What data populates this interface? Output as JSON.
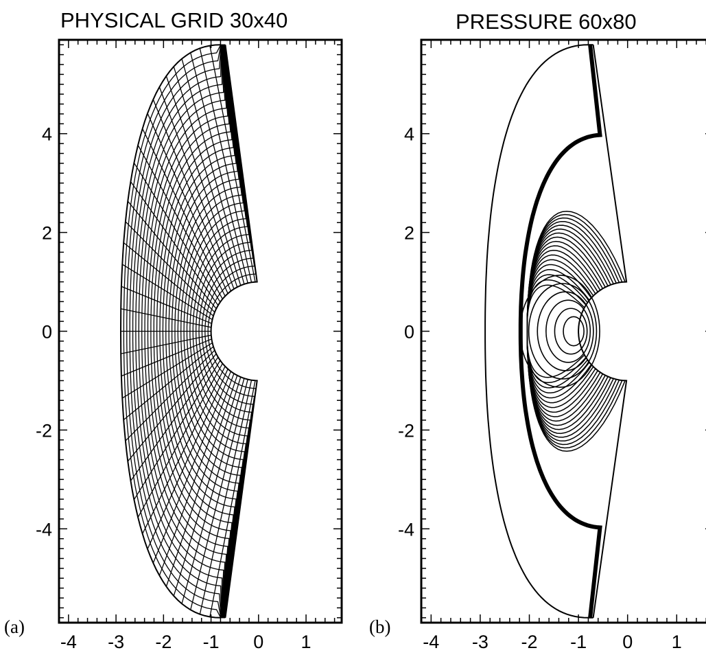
{
  "panels": [
    {
      "id": "a",
      "label": "(a)",
      "title": "PHYSICAL GRID  30x40",
      "kind": "grid",
      "xlim": [
        -4.2,
        1.75
      ],
      "ylim": [
        -5.9,
        5.9
      ],
      "xticks": [
        "-4",
        "-3",
        "-2",
        "-1",
        "0",
        "1"
      ],
      "yticks": [
        "4",
        "2",
        "0",
        "-2",
        "-4"
      ]
    },
    {
      "id": "b",
      "label": "(b)",
      "title": "PRESSURE  60x80",
      "kind": "contour",
      "xlim": [
        -4.2,
        1.75
      ],
      "ylim": [
        -5.9,
        5.9
      ],
      "xticks": [
        "-4",
        "-3",
        "-2",
        "-1",
        "0",
        "1"
      ],
      "yticks": [
        "4",
        "2",
        "0",
        "-2",
        "-4"
      ]
    }
  ]
}
